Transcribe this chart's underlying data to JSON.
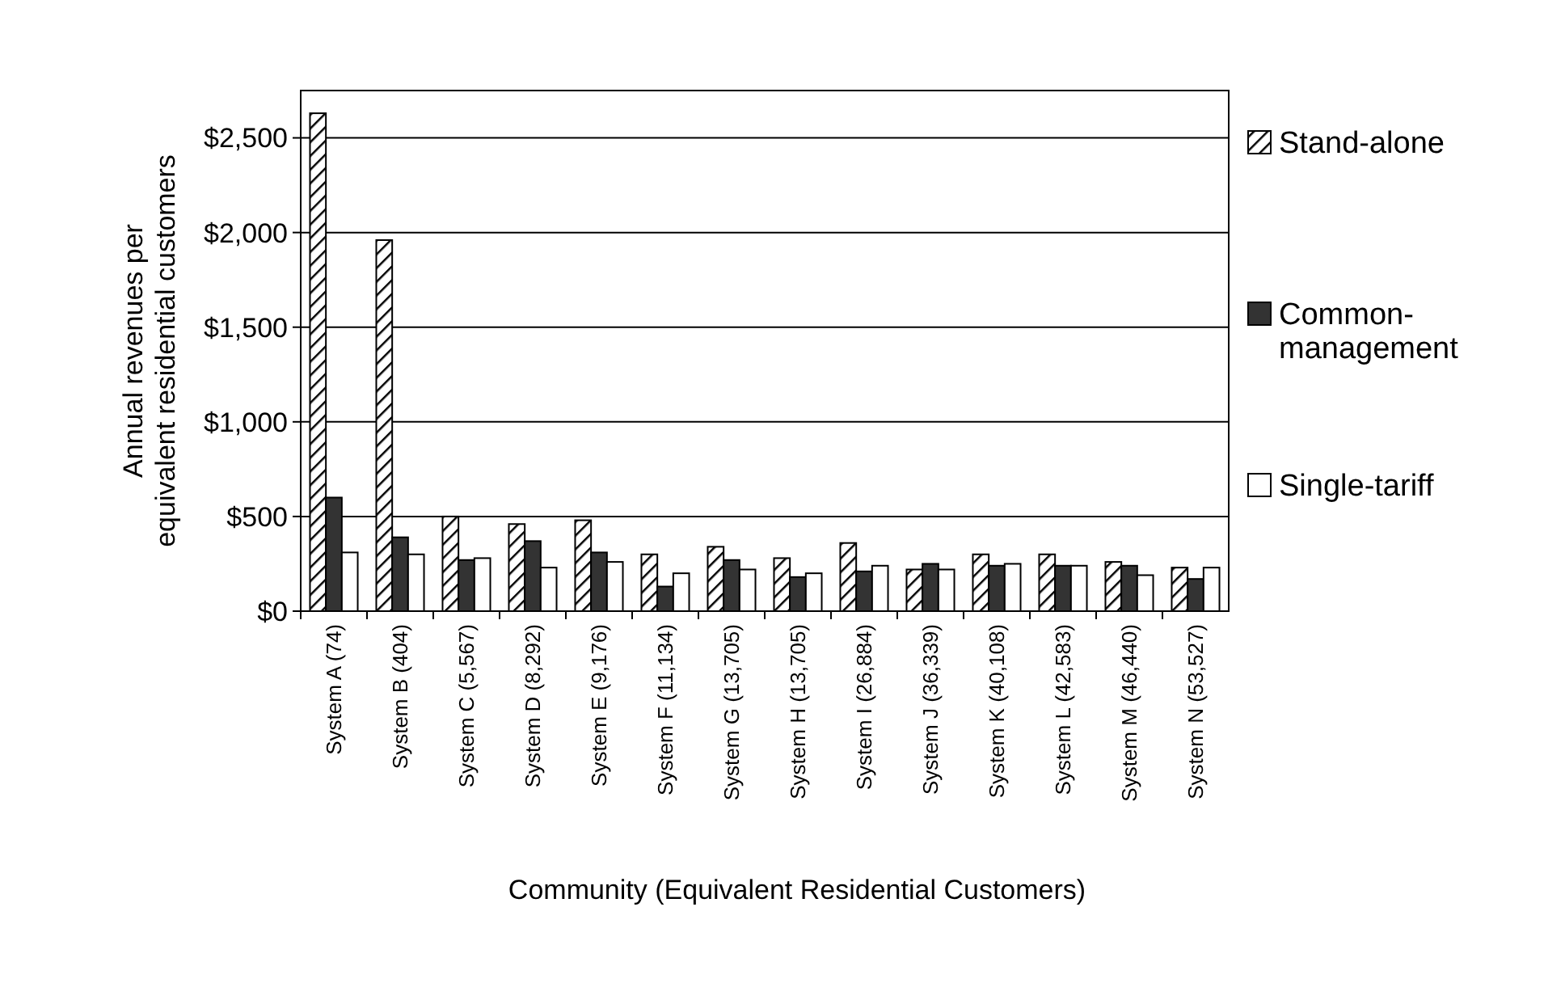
{
  "chart_data": {
    "type": "bar",
    "xlabel": "Community (Equivalent Residential Customers)",
    "ylabel": "Annual revenues per equivalent residential customers",
    "categories": [
      "System A (74)",
      "System B (404)",
      "System C (5,567)",
      "System D (8,292)",
      "System E (9,176)",
      "System F (11,134)",
      "System G (13,705)",
      "System H (13,705)",
      "System I (26,884)",
      "System J (36,339)",
      "System K (40,108)",
      "System L (42,583)",
      "System M (46,440)",
      "System N (53,527)"
    ],
    "series": [
      {
        "name": "Stand-alone",
        "color": "#000000",
        "values": [
          2630,
          1960,
          500,
          460,
          480,
          300,
          340,
          280,
          360,
          220,
          300,
          300,
          260,
          230
        ]
      },
      {
        "name": "Common-management",
        "color": "#333333",
        "values": [
          600,
          390,
          270,
          370,
          310,
          130,
          270,
          180,
          210,
          250,
          240,
          240,
          240,
          170
        ]
      },
      {
        "name": "Single-tariff",
        "color": "#ffffff",
        "values": [
          310,
          300,
          280,
          230,
          260,
          200,
          220,
          200,
          240,
          220,
          250,
          240,
          190,
          230
        ]
      }
    ],
    "ylim": [
      0,
      2750
    ],
    "yticks": [
      {
        "value": 0,
        "label": "$0"
      },
      {
        "value": 500,
        "label": "$500"
      },
      {
        "value": 1000,
        "label": "$1,000"
      },
      {
        "value": 1500,
        "label": "$1,500"
      },
      {
        "value": 2000,
        "label": "$2,000"
      },
      {
        "value": 2500,
        "label": "$2,500"
      }
    ],
    "grid": "y",
    "legend": "right"
  }
}
